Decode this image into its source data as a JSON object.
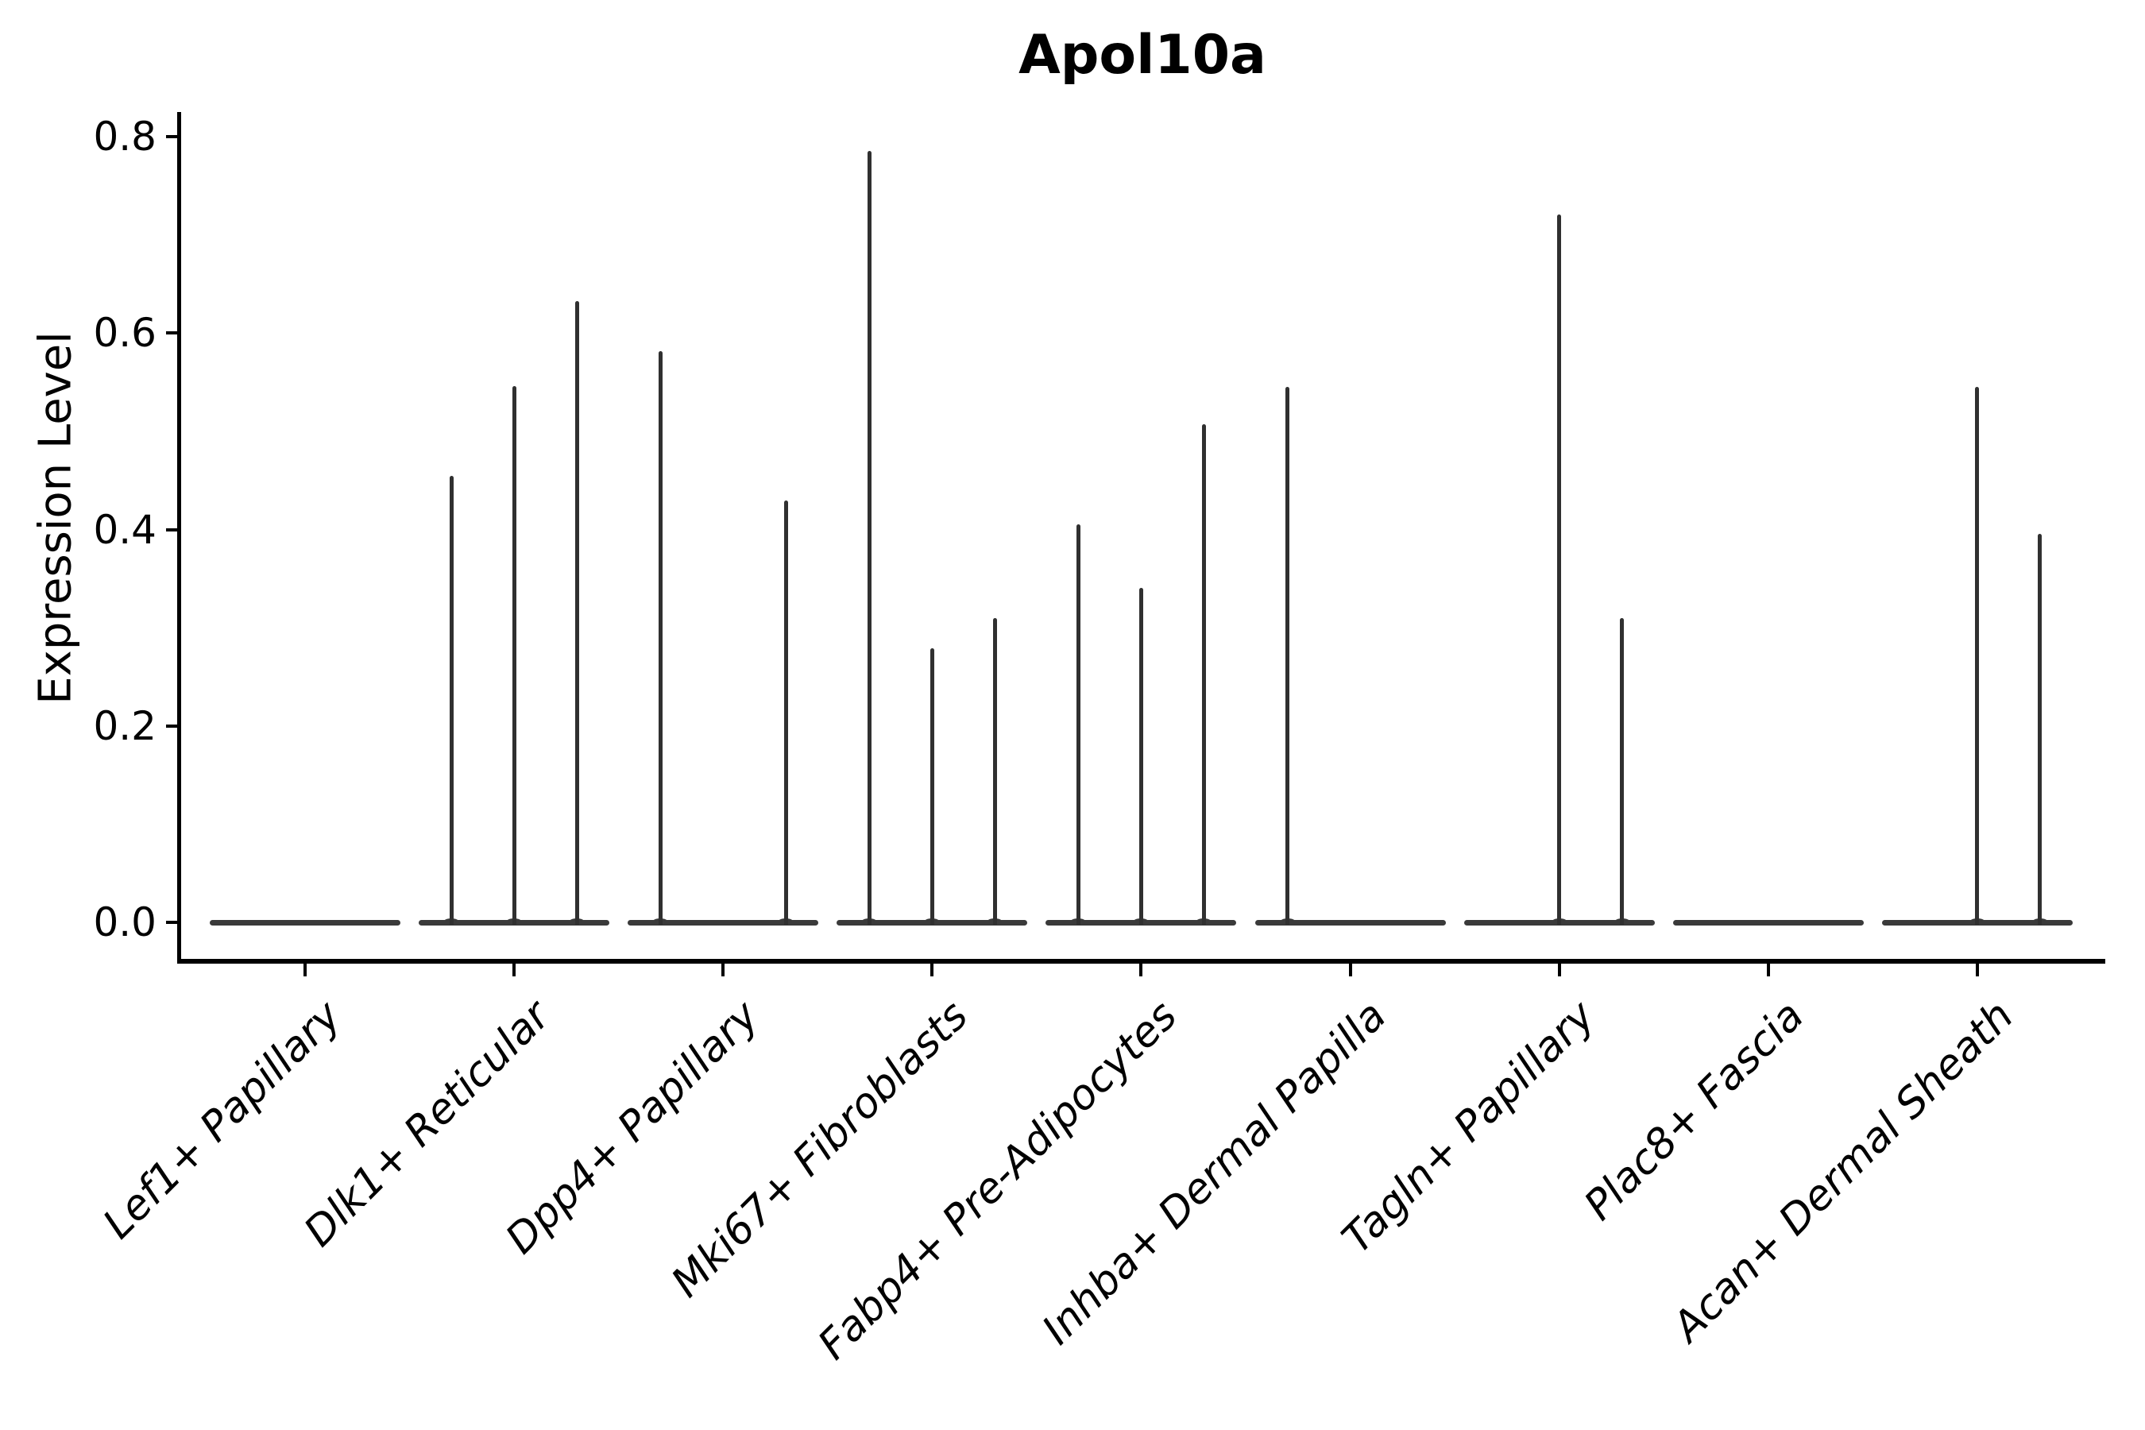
{
  "figure": {
    "title": "Apol10a",
    "y_axis_label": "Expression Level"
  },
  "chart_data": {
    "type": "violin",
    "title": "Apol10a",
    "xlabel": "",
    "ylabel": "Expression Level",
    "ylim": [
      0.0,
      0.8
    ],
    "yticks": [
      "0.0",
      "0.2",
      "0.4",
      "0.6",
      "0.8"
    ],
    "grid": false,
    "legend": "none",
    "categories": [
      "Lef1+ Papillary",
      "Dlk1+ Reticular",
      "Dpp4+ Papillary",
      "Mki67+ Fibroblasts",
      "Fabp4+ Pre-Adipocytes",
      "Inhba+ Dermal Papilla",
      "Tagln+ Papillary",
      "Plac8+ Fascia",
      "Acan+ Dermal Sheath"
    ],
    "series": [
      {
        "name": "Lef1+ Papillary",
        "spikes": []
      },
      {
        "name": "Dlk1+ Reticular",
        "spikes": [
          {
            "offset": -1,
            "peak": 0.455
          },
          {
            "offset": 0,
            "peak": 0.546
          },
          {
            "offset": 1,
            "peak": 0.633
          }
        ]
      },
      {
        "name": "Dpp4+ Papillary",
        "spikes": [
          {
            "offset": -1,
            "peak": 0.582
          },
          {
            "offset": 1,
            "peak": 0.43
          }
        ]
      },
      {
        "name": "Mki67+ Fibroblasts",
        "spikes": [
          {
            "offset": -1,
            "peak": 0.786
          },
          {
            "offset": 0,
            "peak": 0.279
          },
          {
            "offset": 1,
            "peak": 0.31
          }
        ]
      },
      {
        "name": "Fabp4+ Pre-Adipocytes",
        "spikes": [
          {
            "offset": -1,
            "peak": 0.405
          },
          {
            "offset": 0,
            "peak": 0.341
          },
          {
            "offset": 1,
            "peak": 0.507
          }
        ]
      },
      {
        "name": "Inhba+ Dermal Papilla",
        "spikes": [
          {
            "offset": -1,
            "peak": 0.545
          }
        ]
      },
      {
        "name": "Tagln+ Papillary",
        "spikes": [
          {
            "offset": 0,
            "peak": 0.721
          },
          {
            "offset": 1,
            "peak": 0.31
          }
        ]
      },
      {
        "name": "Plac8+ Fascia",
        "spikes": []
      },
      {
        "name": "Acan+ Dermal Sheath",
        "spikes": [
          {
            "offset": 0,
            "peak": 0.545
          },
          {
            "offset": 1,
            "peak": 0.396
          }
        ]
      }
    ],
    "colors": {
      "violin": "#303030",
      "baseline": "#3a3a3a",
      "axis": "#000000",
      "text": "#000000",
      "background": "#ffffff"
    }
  }
}
